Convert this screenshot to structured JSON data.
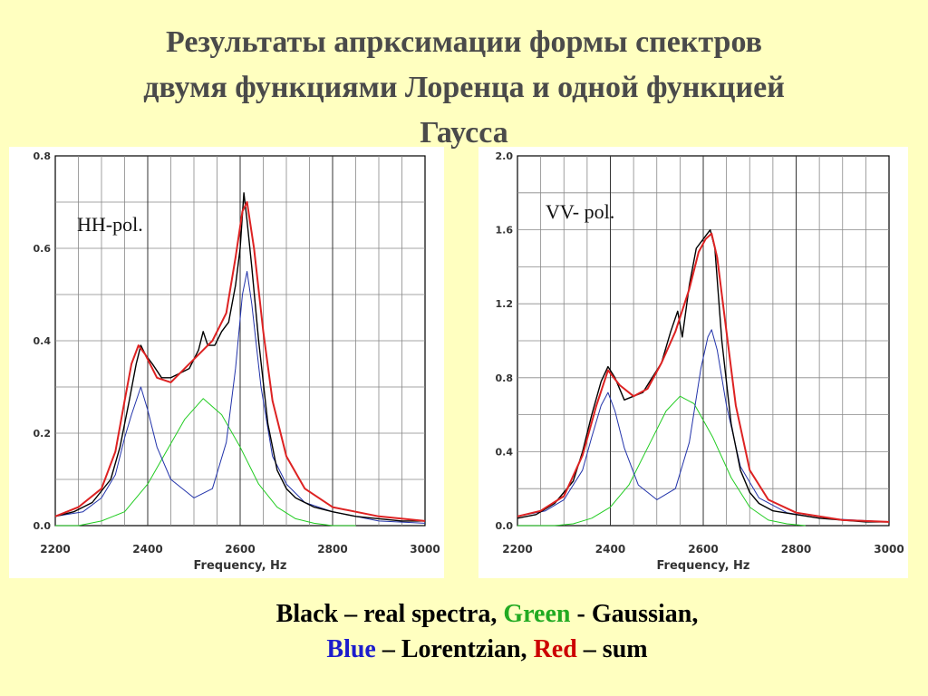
{
  "title": {
    "line1": "Результаты апрксимации формы спектров",
    "line2": "двумя функциями Лоренца и одной функцией",
    "line3": "Гаусса"
  },
  "colors": {
    "background": "#ffffc0",
    "title": "#4a4a4a",
    "real": "#000000",
    "gaussian": "#22cc22",
    "lorentzian": "#2233aa",
    "sum": "#dd2222",
    "caption_green": "#22aa22",
    "caption_blue": "#1c1ccc",
    "caption_red": "#cc0000"
  },
  "caption": {
    "black": "Black",
    "black_rest": " – real spectra, ",
    "green": "Green",
    "green_rest": " - Gaussian,",
    "blue": "Blue",
    "blue_rest": " – Lorentzian, ",
    "red": "Red",
    "red_rest": " – sum"
  },
  "chart_data": [
    {
      "type": "line",
      "annotation": "HH-pol.",
      "xlabel": "Frequency, Hz",
      "ylabel": "",
      "xlim": [
        2200,
        3000
      ],
      "ylim": [
        0,
        0.8
      ],
      "xticks": [
        "2200",
        "2400",
        "2600",
        "2800",
        "3000"
      ],
      "yticks": [
        "0.0",
        "0.2",
        "0.4",
        "0.6",
        "0.8"
      ],
      "grid": true,
      "components": {
        "lorentz1": {
          "center": 2385,
          "amplitude": 0.28,
          "hwhm": 42
        },
        "lorentz2": {
          "center": 2612,
          "amplitude": 0.54,
          "hwhm": 42
        },
        "gaussian": {
          "center": 2520,
          "amplitude": 0.275,
          "sigma": 78
        }
      },
      "series": [
        {
          "name": "Black",
          "color": "#000000",
          "x": [
            2200,
            2240,
            2280,
            2320,
            2340,
            2360,
            2375,
            2385,
            2395,
            2410,
            2430,
            2450,
            2470,
            2490,
            2510,
            2520,
            2530,
            2545,
            2560,
            2575,
            2590,
            2600,
            2608,
            2615,
            2625,
            2640,
            2660,
            2680,
            2700,
            2720,
            2740,
            2760,
            2800,
            2850,
            2900,
            2950,
            3000
          ],
          "y": [
            0.02,
            0.03,
            0.05,
            0.1,
            0.17,
            0.27,
            0.35,
            0.39,
            0.37,
            0.35,
            0.32,
            0.32,
            0.33,
            0.34,
            0.38,
            0.42,
            0.39,
            0.39,
            0.42,
            0.44,
            0.52,
            0.6,
            0.72,
            0.66,
            0.56,
            0.4,
            0.22,
            0.12,
            0.08,
            0.06,
            0.05,
            0.04,
            0.03,
            0.02,
            0.015,
            0.01,
            0.01
          ]
        },
        {
          "name": "Green",
          "color": "#22cc22",
          "x": [
            2200,
            2250,
            2300,
            2350,
            2400,
            2440,
            2480,
            2520,
            2560,
            2600,
            2640,
            2680,
            2720,
            2760,
            2800,
            2850
          ],
          "y": [
            0.0,
            0.0,
            0.01,
            0.03,
            0.09,
            0.16,
            0.23,
            0.275,
            0.24,
            0.17,
            0.09,
            0.04,
            0.015,
            0.005,
            0.0,
            0.0
          ]
        },
        {
          "name": "Blue",
          "color": "#2233aa",
          "x": [
            2200,
            2260,
            2300,
            2330,
            2350,
            2365,
            2385,
            2400,
            2420,
            2450,
            2500,
            2540,
            2570,
            2590,
            2605,
            2615,
            2625,
            2645,
            2670,
            2700,
            2740,
            2800,
            2900,
            3000
          ],
          "y": [
            0.02,
            0.03,
            0.06,
            0.11,
            0.19,
            0.24,
            0.3,
            0.25,
            0.17,
            0.1,
            0.06,
            0.08,
            0.18,
            0.34,
            0.5,
            0.55,
            0.48,
            0.3,
            0.15,
            0.09,
            0.05,
            0.03,
            0.01,
            0.005
          ]
        },
        {
          "name": "Red",
          "color": "#dd2222",
          "x": [
            2200,
            2250,
            2300,
            2330,
            2350,
            2365,
            2380,
            2395,
            2420,
            2450,
            2480,
            2510,
            2540,
            2570,
            2590,
            2605,
            2615,
            2630,
            2650,
            2670,
            2700,
            2740,
            2800,
            2900,
            3000
          ],
          "y": [
            0.02,
            0.04,
            0.08,
            0.16,
            0.27,
            0.35,
            0.39,
            0.37,
            0.32,
            0.31,
            0.34,
            0.37,
            0.4,
            0.46,
            0.58,
            0.68,
            0.7,
            0.6,
            0.42,
            0.27,
            0.15,
            0.08,
            0.04,
            0.02,
            0.01
          ]
        }
      ]
    },
    {
      "type": "line",
      "annotation": "VV- pol.",
      "xlabel": "Frequency, Hz",
      "ylabel": "",
      "xlim": [
        2200,
        3000
      ],
      "ylim": [
        0,
        2.0
      ],
      "xticks": [
        "2200",
        "2400",
        "2600",
        "2800",
        "3000"
      ],
      "yticks": [
        "0.0",
        "0.4",
        "0.8",
        "1.2",
        "1.6",
        "2.0"
      ],
      "grid": true,
      "components": {
        "lorentz1": {
          "center": 2395,
          "amplitude": 0.7,
          "hwhm": 45
        },
        "lorentz2": {
          "center": 2618,
          "amplitude": 1.05,
          "hwhm": 42
        },
        "gaussian": {
          "center": 2550,
          "amplitude": 0.7,
          "sigma": 70
        }
      },
      "series": [
        {
          "name": "Black",
          "color": "#000000",
          "x": [
            2200,
            2240,
            2280,
            2320,
            2340,
            2360,
            2380,
            2395,
            2410,
            2430,
            2450,
            2470,
            2490,
            2510,
            2530,
            2545,
            2555,
            2570,
            2585,
            2600,
            2615,
            2625,
            2640,
            2660,
            2680,
            2700,
            2720,
            2750,
            2800,
            2850,
            2900,
            2950,
            3000
          ],
          "y": [
            0.04,
            0.06,
            0.12,
            0.24,
            0.4,
            0.6,
            0.78,
            0.86,
            0.8,
            0.68,
            0.7,
            0.72,
            0.8,
            0.88,
            1.05,
            1.16,
            1.02,
            1.3,
            1.5,
            1.55,
            1.6,
            1.5,
            1.0,
            0.55,
            0.3,
            0.18,
            0.12,
            0.08,
            0.06,
            0.04,
            0.03,
            0.02,
            0.02
          ]
        },
        {
          "name": "Green",
          "color": "#22cc22",
          "x": [
            2200,
            2280,
            2320,
            2360,
            2400,
            2440,
            2480,
            2520,
            2550,
            2580,
            2620,
            2660,
            2700,
            2740,
            2780,
            2820
          ],
          "y": [
            0.0,
            0.0,
            0.01,
            0.04,
            0.1,
            0.22,
            0.42,
            0.62,
            0.7,
            0.66,
            0.48,
            0.26,
            0.1,
            0.03,
            0.01,
            0.0
          ]
        },
        {
          "name": "Blue",
          "color": "#2233aa",
          "x": [
            2200,
            2260,
            2300,
            2340,
            2360,
            2380,
            2395,
            2410,
            2430,
            2460,
            2500,
            2540,
            2570,
            2595,
            2610,
            2618,
            2630,
            2650,
            2680,
            2720,
            2780,
            2850,
            3000
          ],
          "y": [
            0.05,
            0.08,
            0.14,
            0.3,
            0.48,
            0.65,
            0.72,
            0.62,
            0.42,
            0.22,
            0.14,
            0.2,
            0.45,
            0.85,
            1.02,
            1.06,
            0.95,
            0.65,
            0.32,
            0.15,
            0.07,
            0.04,
            0.02
          ]
        },
        {
          "name": "Red",
          "color": "#dd2222",
          "x": [
            2200,
            2250,
            2300,
            2340,
            2370,
            2395,
            2420,
            2450,
            2480,
            2510,
            2540,
            2570,
            2590,
            2605,
            2618,
            2630,
            2650,
            2670,
            2700,
            2740,
            2800,
            2900,
            3000
          ],
          "y": [
            0.05,
            0.08,
            0.16,
            0.38,
            0.65,
            0.84,
            0.76,
            0.7,
            0.74,
            0.88,
            1.05,
            1.28,
            1.48,
            1.55,
            1.58,
            1.45,
            1.05,
            0.65,
            0.3,
            0.14,
            0.07,
            0.03,
            0.02
          ]
        }
      ]
    }
  ]
}
